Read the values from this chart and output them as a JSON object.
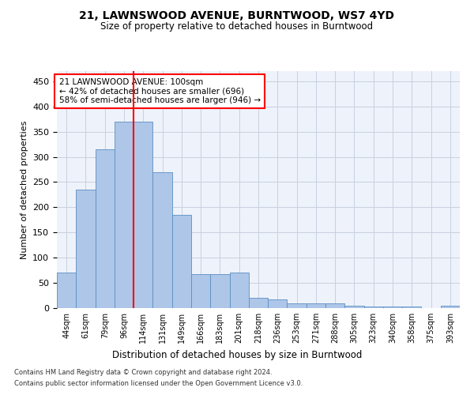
{
  "title": "21, LAWNSWOOD AVENUE, BURNTWOOD, WS7 4YD",
  "subtitle": "Size of property relative to detached houses in Burntwood",
  "xlabel": "Distribution of detached houses by size in Burntwood",
  "ylabel": "Number of detached properties",
  "categories": [
    "44sqm",
    "61sqm",
    "79sqm",
    "96sqm",
    "114sqm",
    "131sqm",
    "149sqm",
    "166sqm",
    "183sqm",
    "201sqm",
    "218sqm",
    "236sqm",
    "253sqm",
    "271sqm",
    "288sqm",
    "305sqm",
    "323sqm",
    "340sqm",
    "358sqm",
    "375sqm",
    "393sqm"
  ],
  "values": [
    70,
    235,
    315,
    370,
    370,
    270,
    185,
    67,
    68,
    70,
    20,
    18,
    10,
    10,
    10,
    5,
    3,
    3,
    3,
    0,
    4
  ],
  "bar_color": "#aec6e8",
  "bar_edge_color": "#5a8fc2",
  "vline_x": 3.5,
  "vline_color": "red",
  "annotation_text": "21 LAWNSWOOD AVENUE: 100sqm\n← 42% of detached houses are smaller (696)\n58% of semi-detached houses are larger (946) →",
  "annotation_box_color": "white",
  "annotation_box_edge": "red",
  "ylim": [
    0,
    470
  ],
  "background_color": "#eef2fa",
  "footer_line1": "Contains HM Land Registry data © Crown copyright and database right 2024.",
  "footer_line2": "Contains public sector information licensed under the Open Government Licence v3.0."
}
